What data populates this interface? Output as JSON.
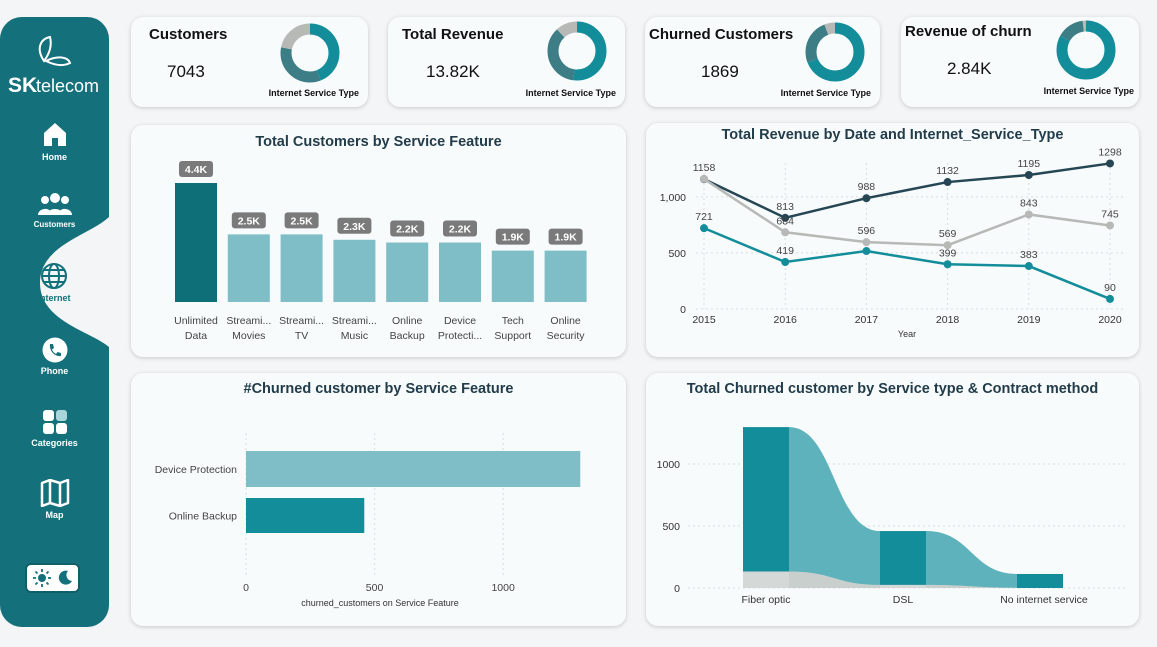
{
  "brand": {
    "name_sk": "SK",
    "name_rest": "telecom"
  },
  "nav": [
    {
      "id": "home",
      "label": "Home",
      "icon": "home-icon"
    },
    {
      "id": "customers",
      "label": "Customers",
      "icon": "users-icon"
    },
    {
      "id": "internet",
      "label": "Internet",
      "icon": "globe-icon",
      "active": true
    },
    {
      "id": "phone",
      "label": "Phone",
      "icon": "phone-icon"
    },
    {
      "id": "categories",
      "label": "Categories",
      "icon": "grid-icon"
    },
    {
      "id": "map",
      "label": "Map",
      "icon": "map-icon"
    }
  ],
  "theme_toggle": {
    "icons": [
      "sun-icon",
      "moon-icon"
    ]
  },
  "colors": {
    "primary": "#14707a",
    "teal": "#138d99",
    "teal_light": "#7fbec6",
    "dark": "#264654",
    "gray": "#b7b9b6"
  },
  "kpis": [
    {
      "title": "Customers",
      "value": "7043",
      "subtitle": "Internet Service Type",
      "donut": [
        44,
        34,
        22
      ]
    },
    {
      "title": "Total Revenue",
      "value": "13.82K",
      "subtitle": "Internet Service Type",
      "donut": [
        52,
        36,
        12
      ]
    },
    {
      "title": "Churned Customers",
      "value": "1869",
      "subtitle": "Internet Service Type",
      "donut": [
        69,
        25,
        6
      ]
    },
    {
      "title": "Revenue of churn",
      "value": "2.84K",
      "subtitle": "Internet Service Type",
      "donut": [
        83,
        15,
        2
      ]
    }
  ],
  "charts": {
    "bar_service": {
      "title": "Total Customers by Service Feature",
      "chart_data": {
        "type": "bar",
        "categories": [
          "Unlimited Data",
          "Streami... Movies",
          "Streami... TV",
          "Streami... Music",
          "Online Backup",
          "Device Protecti...",
          "Tech Support",
          "Online Security"
        ],
        "category_lines": [
          [
            "Unlimited",
            "Data"
          ],
          [
            "Streami...",
            "Movies"
          ],
          [
            "Streami...",
            "TV"
          ],
          [
            "Streami...",
            "Music"
          ],
          [
            "Online",
            "Backup"
          ],
          [
            "Device",
            "Protecti..."
          ],
          [
            "Tech",
            "Support"
          ],
          [
            "Online",
            "Security"
          ]
        ],
        "values": [
          4400,
          2500,
          2500,
          2300,
          2200,
          2200,
          1900,
          1900
        ],
        "data_labels": [
          "4.4K",
          "2.5K",
          "2.5K",
          "2.3K",
          "2.2K",
          "2.2K",
          "1.9K",
          "1.9K"
        ],
        "ylim": [
          0,
          4400
        ]
      }
    },
    "line_revenue": {
      "title": "Total Revenue by Date and Internet_Service_Type",
      "chart_data": {
        "type": "line",
        "x": [
          2015,
          2016,
          2017,
          2018,
          2019,
          2020
        ],
        "xlabel": "Year",
        "ylim": [
          0,
          1400
        ],
        "yticks": [
          0,
          500,
          1000
        ],
        "ytick_labels": [
          "0",
          "500",
          "1,000"
        ],
        "series": [
          {
            "values": [
              1158,
              813,
              988,
              1132,
              1195,
              1298
            ],
            "labels": [
              "1158",
              "813",
              "988",
              "1132",
              "1195",
              "1298"
            ],
            "color": "#264654"
          },
          {
            "values": [
              1160,
              684,
              596,
              569,
              843,
              745
            ],
            "labels": [
              "",
              "684",
              "596",
              "569",
              "843",
              "745"
            ],
            "color": "#b7b9b6"
          },
          {
            "values": [
              721,
              419,
              517,
              399,
              383,
              90
            ],
            "labels": [
              "721",
              "419",
              "",
              "399",
              "383",
              "90"
            ],
            "color": "#138d99"
          }
        ]
      }
    },
    "hbar_churn": {
      "title": "#Churned customer by Service Feature",
      "chart_data": {
        "type": "bar",
        "orientation": "horizontal",
        "categories": [
          "Device Protection",
          "Online Backup"
        ],
        "values": [
          1300,
          460
        ],
        "xticks": [
          0,
          500,
          1000
        ],
        "xlabel": "churned_customers on Service Feature",
        "xlim": [
          0,
          1400
        ]
      }
    },
    "ribbon_churn": {
      "title": "Total Churned customer by Service type & Contract method",
      "chart_data": {
        "type": "area",
        "categories": [
          "Fiber optic",
          "DSL",
          "No internet service"
        ],
        "totals": [
          1297,
          459,
          113
        ],
        "segments": [
          [
            1150,
            135,
            12
          ],
          [
            380,
            72,
            7
          ],
          [
            100,
            13,
            0
          ]
        ],
        "yticks": [
          0,
          500,
          1000
        ],
        "ylim": [
          0,
          1330
        ]
      }
    }
  }
}
